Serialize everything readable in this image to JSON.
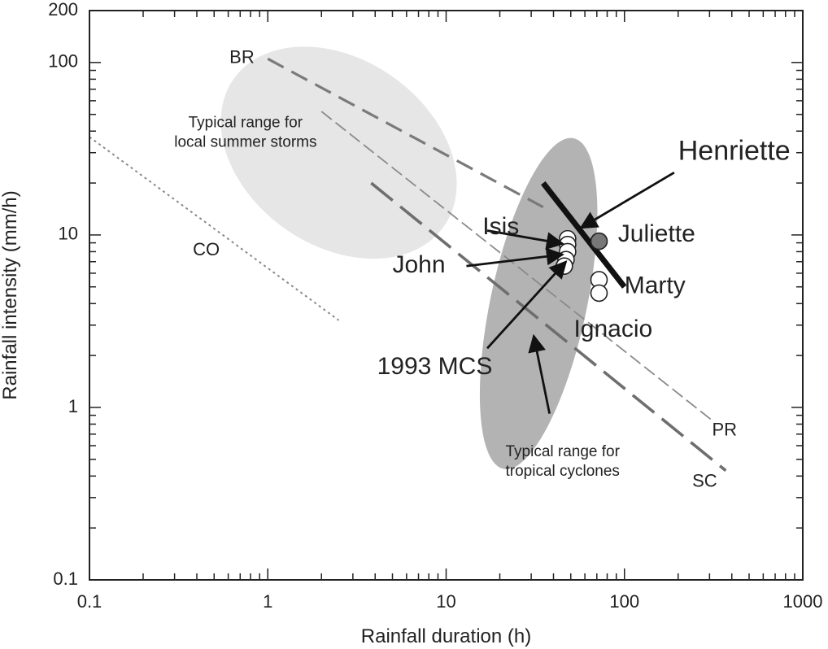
{
  "chart_data": {
    "type": "scatter",
    "xlabel": "Rainfall duration (h)",
    "ylabel": "Rainfall intensity (mm/h)",
    "xscale": "log",
    "yscale": "log",
    "xlim": [
      0.1,
      1000
    ],
    "ylim": [
      0.1,
      200
    ],
    "x_ticks": [
      {
        "value": 0.1,
        "label": "0.1"
      },
      {
        "value": 1,
        "label": "1"
      },
      {
        "value": 10,
        "label": "10"
      },
      {
        "value": 100,
        "label": "100"
      },
      {
        "value": 1000,
        "label": "1000"
      }
    ],
    "y_ticks": [
      {
        "value": 0.1,
        "label": "0.1"
      },
      {
        "value": 1,
        "label": "1"
      },
      {
        "value": 10,
        "label": "10"
      },
      {
        "value": 100,
        "label": "100"
      },
      {
        "value": 200,
        "label": "200"
      }
    ],
    "grid": false,
    "threshold_curves": [
      {
        "name": "BR",
        "style": "medium-dash",
        "color": "#7a7a7a",
        "x": [
          1,
          35
        ],
        "y": [
          105,
          14.5
        ]
      },
      {
        "name": "PR",
        "style": "thin-dash",
        "color": "#8a8a8a",
        "x": [
          2,
          320
        ],
        "y": [
          52,
          0.82
        ]
      },
      {
        "name": "SC",
        "style": "long-dash",
        "color": "#6e6e6e",
        "x": [
          3.8,
          370
        ],
        "y": [
          20,
          0.43
        ]
      },
      {
        "name": "CO",
        "style": "dotted",
        "color": "#8a8a8a",
        "x": [
          0.1,
          2.5
        ],
        "y": [
          37,
          3.2
        ]
      }
    ],
    "regions": [
      {
        "id": "summer",
        "label": "Typical range for\nlocal summer storms",
        "label_lines": [
          "Typical range for",
          "local summer storms"
        ],
        "color": "#e6e6e6",
        "center": [
          2.5,
          30
        ],
        "rx_decades": 0.72,
        "ry_decades": 0.54,
        "rotation_deg": 35
      },
      {
        "id": "tropical",
        "label": "Typical range for\ntropical cyclones",
        "label_lines": [
          "Typical range for",
          "tropical cyclones"
        ],
        "color": "#b3b3b3",
        "center": [
          33,
          4
        ],
        "rx_decades": 0.27,
        "ry_decades": 0.98,
        "rotation_deg": 12
      }
    ],
    "henriette_line": {
      "name": "Henriette",
      "x": [
        35,
        100
      ],
      "y": [
        20,
        5
      ]
    },
    "points": [
      {
        "event": "Isis",
        "x": 48,
        "y": 9.5,
        "fill": "#ffffff"
      },
      {
        "event": "Isis",
        "x": 48,
        "y": 8.8,
        "fill": "#ffffff"
      },
      {
        "event": "John",
        "x": 48,
        "y": 8.0,
        "fill": "#ffffff"
      },
      {
        "event": "John",
        "x": 47,
        "y": 7.2,
        "fill": "#ffffff"
      },
      {
        "event": "1993 MCS",
        "x": 46,
        "y": 6.6,
        "fill": "#ffffff"
      },
      {
        "event": "Juliette",
        "x": 72,
        "y": 9.2,
        "fill": "#777777"
      },
      {
        "event": "Marty",
        "x": 72,
        "y": 5.5,
        "fill": "#ffffff"
      },
      {
        "event": "Marty",
        "x": 72,
        "y": 4.6,
        "fill": "#ffffff"
      }
    ],
    "labels": [
      {
        "text": "Henriette",
        "x": 200,
        "y": 30,
        "size": 34
      },
      {
        "text": "Isis",
        "x": 16,
        "y": 11,
        "size": 30
      },
      {
        "text": "Juliette",
        "x": 92,
        "y": 10,
        "size": 30
      },
      {
        "text": "John",
        "x": 5,
        "y": 6.6,
        "size": 30
      },
      {
        "text": "Marty",
        "x": 100,
        "y": 5,
        "size": 30
      },
      {
        "text": "Ignacio",
        "x": 52,
        "y": 2.8,
        "size": 30
      },
      {
        "text": "1993 MCS",
        "x": 4.1,
        "y": 1.7,
        "size": 30
      }
    ],
    "curve_labels": [
      {
        "text": "BR",
        "x": 0.61,
        "y": 106
      },
      {
        "text": "PR",
        "x": 310,
        "y": 0.73
      },
      {
        "text": "SC",
        "x": 240,
        "y": 0.37
      },
      {
        "text": "CO",
        "x": 0.38,
        "y": 8.1
      }
    ],
    "arrows": [
      {
        "target": "Henriette",
        "from": [
          190,
          23
        ],
        "to": [
          57,
          11
        ]
      },
      {
        "target": "Isis",
        "from": [
          17,
          10.6
        ],
        "to": [
          45,
          8.9
        ]
      },
      {
        "target": "John",
        "from": [
          13,
          6.6
        ],
        "to": [
          45,
          7.7
        ]
      },
      {
        "target": "1993 MCS",
        "from": [
          17,
          2.2
        ],
        "to": [
          47,
          7.0
        ]
      },
      {
        "target": "tropical",
        "from": [
          38,
          0.92
        ],
        "to": [
          31,
          2.6
        ]
      }
    ]
  }
}
